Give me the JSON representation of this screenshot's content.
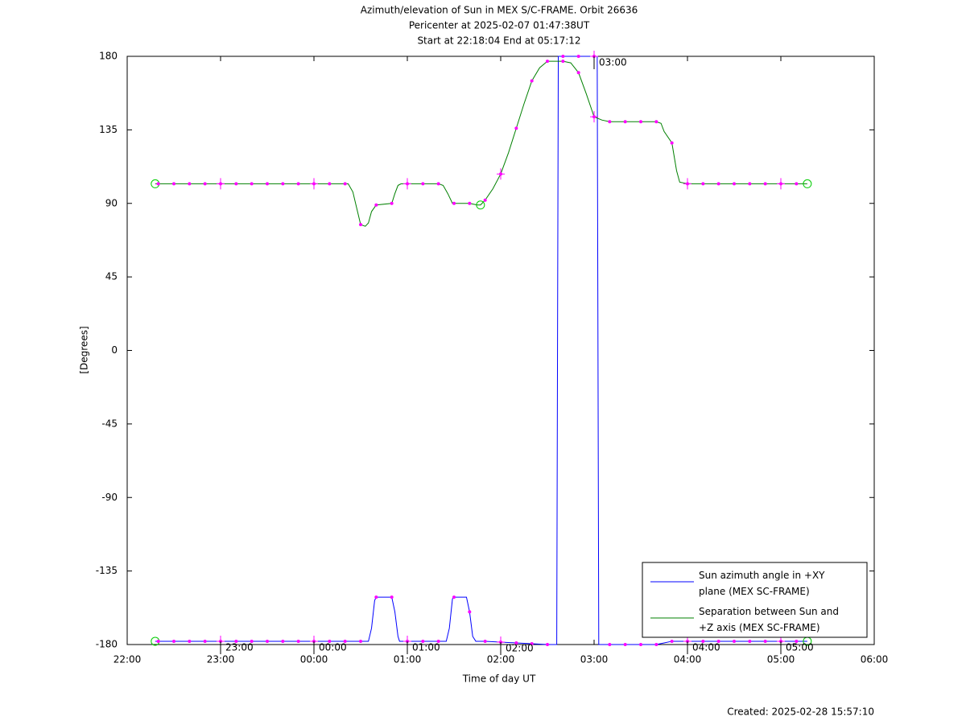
{
  "chart_data": {
    "type": "line",
    "title": "Azimuth/elevation of Sun in MEX S/C-FRAME.  Orbit 26636",
    "subtitle": "Pericenter at 2025-02-07 01:47:38UT",
    "time_range": "Start at 22:18:04 End at 05:17:12",
    "xlabel": "Time of day UT",
    "ylabel": "[Degrees]",
    "footer": "Created: 2025-02-28 15:57:10",
    "xlim": [
      "22:00",
      "06:00"
    ],
    "xticks": [
      "22:00",
      "23:00",
      "00:00",
      "01:00",
      "02:00",
      "03:00",
      "04:00",
      "05:00",
      "06:00"
    ],
    "ylim": [
      -180,
      180
    ],
    "yticks": [
      180,
      135,
      90,
      45,
      0,
      -45,
      -90,
      -135,
      -180
    ],
    "hour_marks": [
      "23:00",
      "00:00",
      "01:00",
      "02:00",
      "03:00",
      "04:00",
      "05:00"
    ],
    "legend": "lower right",
    "marker_color": "#ff00ff",
    "endpoint_color": "#00cc00",
    "series": [
      {
        "name": "Sun azimuth angle in +XY\nplane (MEX SC-FRAME)",
        "color": "#0000ff",
        "x": [
          "22:18",
          "22:20",
          "22:30",
          "22:40",
          "22:50",
          "23:00",
          "23:10",
          "23:20",
          "23:30",
          "23:40",
          "23:50",
          "00:00",
          "00:10",
          "00:20",
          "00:30",
          "00:35",
          "00:37",
          "00:39",
          "00:40",
          "00:50",
          "00:52",
          "00:54",
          "00:55",
          "01:00",
          "01:10",
          "01:20",
          "01:25",
          "01:27",
          "01:29",
          "01:30",
          "01:38",
          "01:40",
          "01:42",
          "01:44",
          "01:50",
          "02:00",
          "02:10",
          "02:20",
          "02:30",
          "02:36",
          "02:37",
          "02:40",
          "02:50",
          "03:00",
          "03:02",
          "03:03",
          "03:10",
          "03:20",
          "03:30",
          "03:40",
          "03:45",
          "03:50",
          "04:00",
          "04:10",
          "04:20",
          "04:30",
          "04:40",
          "04:50",
          "05:00",
          "05:10",
          "05:17"
        ],
        "values": [
          -178,
          -178,
          -178,
          -178,
          -178,
          -178,
          -178,
          -178,
          -178,
          -178,
          -178,
          -178,
          -178,
          -178,
          -178,
          -178,
          -170,
          -153,
          -151,
          -151,
          -160,
          -175,
          -178,
          -178,
          -178,
          -178,
          -178,
          -170,
          -152,
          -151,
          -151,
          -160,
          -175,
          -178,
          -178,
          -178.5,
          -179,
          -179.5,
          -180,
          -180,
          180,
          180,
          180,
          180,
          180,
          -180,
          -180,
          -180,
          -180,
          -180,
          -179,
          -178,
          -178,
          -178,
          -178,
          -178,
          -178,
          -178,
          -178,
          -178,
          -178
        ]
      },
      {
        "name": "Separation between Sun and\n+Z axis (MEX SC-FRAME)",
        "color": "#008000",
        "x": [
          "22:18",
          "22:20",
          "22:30",
          "22:40",
          "22:50",
          "23:00",
          "23:10",
          "23:20",
          "23:30",
          "23:40",
          "23:50",
          "00:00",
          "00:10",
          "00:20",
          "00:22",
          "00:25",
          "00:28",
          "00:30",
          "00:33",
          "00:35",
          "00:37",
          "00:40",
          "00:50",
          "00:52",
          "00:54",
          "00:56",
          "01:00",
          "01:10",
          "01:20",
          "01:23",
          "01:26",
          "01:29",
          "01:30",
          "01:40",
          "01:45",
          "01:47",
          "01:50",
          "01:55",
          "02:00",
          "02:05",
          "02:10",
          "02:15",
          "02:20",
          "02:25",
          "02:30",
          "02:40",
          "02:45",
          "02:50",
          "02:55",
          "03:00",
          "03:05",
          "03:10",
          "03:20",
          "03:30",
          "03:40",
          "03:43",
          "03:45",
          "03:50",
          "03:53",
          "03:55",
          "04:00",
          "04:10",
          "04:20",
          "04:30",
          "04:40",
          "04:50",
          "05:00",
          "05:10",
          "05:17"
        ],
        "values": [
          102,
          102,
          102,
          102,
          102,
          102,
          102,
          102,
          102,
          102,
          102,
          102,
          102,
          102,
          102,
          97,
          85,
          77,
          76,
          78,
          85,
          89,
          90,
          96,
          101,
          102,
          102,
          102,
          102,
          101,
          96,
          90,
          90,
          90,
          89,
          89,
          92,
          99,
          108,
          121,
          136,
          151,
          165,
          173,
          177,
          177,
          176,
          170,
          157,
          143,
          141,
          140,
          140,
          140,
          140,
          139,
          134,
          127,
          110,
          103,
          102,
          102,
          102,
          102,
          102,
          102,
          102,
          102,
          102
        ]
      }
    ]
  }
}
